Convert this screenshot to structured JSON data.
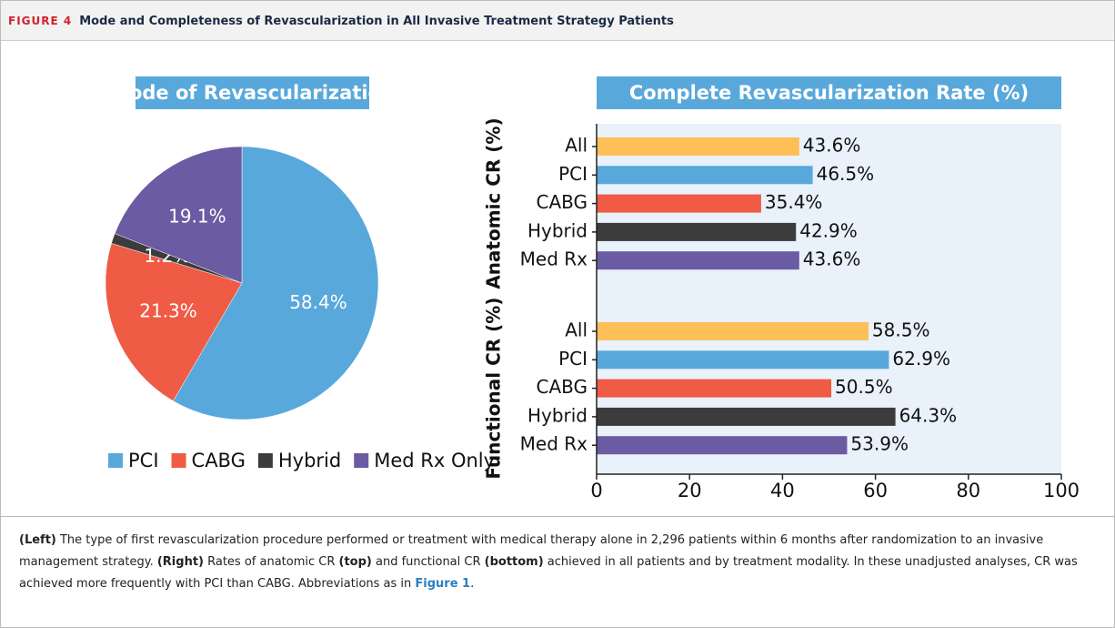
{
  "figure_label": "FIGURE 4",
  "figure_title": "Mode and Completeness of Revascularization in All Invasive Treatment Strategy Patients",
  "chart_data": [
    {
      "type": "pie",
      "title": "Mode of Revascularization",
      "categories": [
        "PCI",
        "CABG",
        "Hybrid",
        "Med Rx Only"
      ],
      "values": [
        58.4,
        21.3,
        1.2,
        19.1
      ],
      "value_labels": [
        "58.4%",
        "21.3%",
        "1.2%",
        "19.1%"
      ],
      "colors": [
        "#58a8dc",
        "#ef5b45",
        "#3c3c3c",
        "#6a5ba3"
      ],
      "legend": "bottom"
    },
    {
      "type": "hbar",
      "title": "Complete Revascularization Rate (%)",
      "groups": [
        {
          "name": "Anatomic CR (%)",
          "categories": [
            "All",
            "PCI",
            "CABG",
            "Hybrid",
            "Med Rx"
          ],
          "values": [
            43.6,
            46.5,
            35.4,
            42.9,
            43.6
          ],
          "value_labels": [
            "43.6%",
            "46.5%",
            "35.4%",
            "42.9%",
            "43.6%"
          ]
        },
        {
          "name": "Functional CR (%)",
          "categories": [
            "All",
            "PCI",
            "CABG",
            "Hybrid",
            "Med Rx"
          ],
          "values": [
            58.5,
            62.9,
            50.5,
            64.3,
            53.9
          ],
          "value_labels": [
            "58.5%",
            "62.9%",
            "50.5%",
            "64.3%",
            "53.9%"
          ]
        }
      ],
      "colors": [
        "#fdbf57",
        "#58a8dc",
        "#ef5b45",
        "#3c3c3c",
        "#6a5ba3"
      ],
      "xlim": [
        0,
        100
      ],
      "xticks": [
        0,
        20,
        40,
        60,
        80,
        100
      ]
    }
  ],
  "caption": [
    {
      "text": "(Left)",
      "bold": true
    },
    {
      "text": " The type of first revascularization procedure performed or treatment with medical therapy alone in 2,296 patients within 6 months after randomization to an invasive management strategy. "
    },
    {
      "text": "(Right)",
      "bold": true
    },
    {
      "text": " Rates of anatomic CR "
    },
    {
      "text": "(top)",
      "bold": true
    },
    {
      "text": " and functional CR "
    },
    {
      "text": "(bottom)",
      "bold": true
    },
    {
      "text": " achieved in all patients and by treatment modality. In these unadjusted analyses, CR was achieved more frequently with PCI than CABG. Abbreviations as in "
    },
    {
      "text": "Figure 1",
      "link": true
    },
    {
      "text": "."
    }
  ]
}
